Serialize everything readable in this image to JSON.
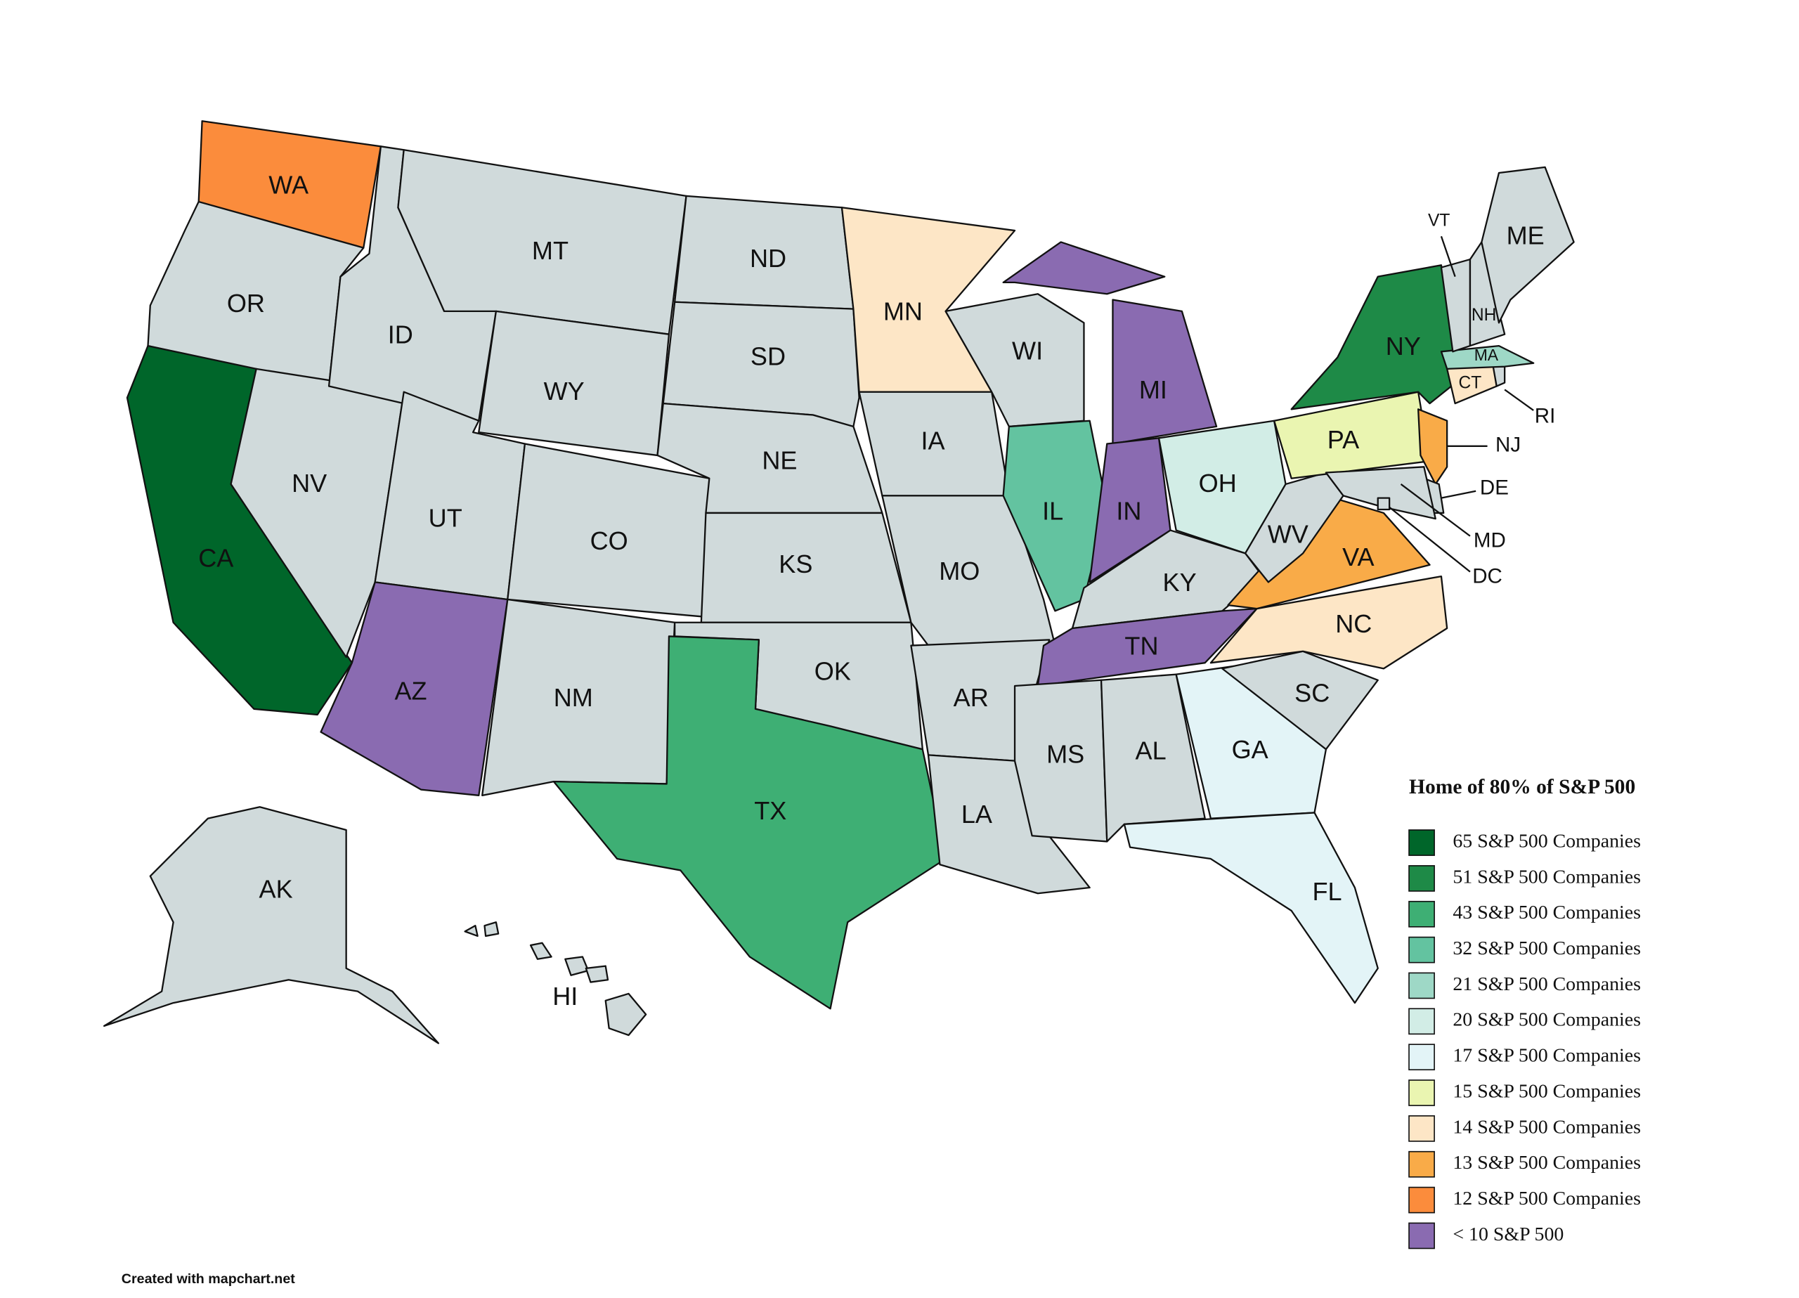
{
  "map": {
    "states": [
      {
        "label": "WA",
        "color": "#fb8c3c"
      },
      {
        "label": "OR",
        "color": "#d0dadb"
      },
      {
        "label": "CA",
        "color": "#00662a"
      },
      {
        "label": "NV",
        "color": "#d0dadb"
      },
      {
        "label": "ID",
        "color": "#d0dadb"
      },
      {
        "label": "MT",
        "color": "#d0dadb"
      },
      {
        "label": "WY",
        "color": "#d0dadb"
      },
      {
        "label": "UT",
        "color": "#d0dadb"
      },
      {
        "label": "CO",
        "color": "#d0dadb"
      },
      {
        "label": "AZ",
        "color": "#8a6bb1"
      },
      {
        "label": "NM",
        "color": "#d0dadb"
      },
      {
        "label": "ND",
        "color": "#d0dadb"
      },
      {
        "label": "SD",
        "color": "#d0dadb"
      },
      {
        "label": "NE",
        "color": "#d0dadb"
      },
      {
        "label": "KS",
        "color": "#d0dadb"
      },
      {
        "label": "OK",
        "color": "#d0dadb"
      },
      {
        "label": "TX",
        "color": "#3eaf74"
      },
      {
        "label": "MN",
        "color": "#fde6c6"
      },
      {
        "label": "IA",
        "color": "#d0dadb"
      },
      {
        "label": "MO",
        "color": "#d0dadb"
      },
      {
        "label": "AR",
        "color": "#d0dadb"
      },
      {
        "label": "LA",
        "color": "#d0dadb"
      },
      {
        "label": "WI",
        "color": "#d0dadb"
      },
      {
        "label": "IL",
        "color": "#63c3a0"
      },
      {
        "label": "MI",
        "color": "#8a6bb1"
      },
      {
        "label": "IN",
        "color": "#8a6bb1"
      },
      {
        "label": "OH",
        "color": "#d2ede6"
      },
      {
        "label": "KY",
        "color": "#d0dadb"
      },
      {
        "label": "TN",
        "color": "#8a6bb1"
      },
      {
        "label": "MS",
        "color": "#d0dadb"
      },
      {
        "label": "AL",
        "color": "#d0dadb"
      },
      {
        "label": "GA",
        "color": "#e3f4f7"
      },
      {
        "label": "FL",
        "color": "#e3f4f7"
      },
      {
        "label": "SC",
        "color": "#d0dadb"
      },
      {
        "label": "NC",
        "color": "#fde6c6"
      },
      {
        "label": "VA",
        "color": "#f9ab48"
      },
      {
        "label": "WV",
        "color": "#d0dadb"
      },
      {
        "label": "PA",
        "color": "#eaf5b1"
      },
      {
        "label": "NY",
        "color": "#1e8a47"
      },
      {
        "label": "NJ",
        "color": "#f9ab48"
      },
      {
        "label": "DE",
        "color": "#d0dadb"
      },
      {
        "label": "MD",
        "color": "#d0dadb"
      },
      {
        "label": "DC",
        "color": "#d0dadb"
      },
      {
        "label": "CT",
        "color": "#fde6c6"
      },
      {
        "label": "RI",
        "color": "#d0dadb"
      },
      {
        "label": "MA",
        "color": "#9ed8c6"
      },
      {
        "label": "VT",
        "color": "#d0dadb"
      },
      {
        "label": "NH",
        "color": "#d0dadb"
      },
      {
        "label": "ME",
        "color": "#d0dadb"
      },
      {
        "label": "AK",
        "color": "#d0dadb"
      },
      {
        "label": "HI",
        "color": "#d0dadb"
      }
    ]
  },
  "legend": {
    "title": "Home of 80% of S&P 500",
    "items": [
      {
        "label": "65 S&P 500 Companies",
        "color": "#00662a"
      },
      {
        "label": "51 S&P 500 Companies",
        "color": "#1e8a47"
      },
      {
        "label": "43 S&P 500 Companies",
        "color": "#3eaf74"
      },
      {
        "label": "32 S&P 500 Companies",
        "color": "#63c3a0"
      },
      {
        "label": "21 S&P 500 Companies",
        "color": "#9ed8c6"
      },
      {
        "label": "20 S&P 500 Companies",
        "color": "#d2ede6"
      },
      {
        "label": "17 S&P 500 Companies",
        "color": "#e3f4f7"
      },
      {
        "label": "15 S&P 500 Companies",
        "color": "#eaf5b1"
      },
      {
        "label": "14 S&P 500 Companies",
        "color": "#fde6c6"
      },
      {
        "label": "13 S&P 500 Companies",
        "color": "#f9ab48"
      },
      {
        "label": "12 S&P 500 Companies",
        "color": "#fb8c3c"
      },
      {
        "label": "< 10 S&P 500",
        "color": "#8a6bb1"
      }
    ]
  },
  "credit": "Created with mapchart.net"
}
